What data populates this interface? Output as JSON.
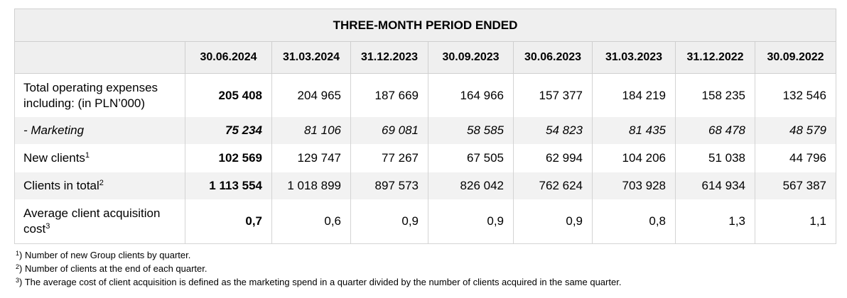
{
  "table": {
    "group_header": "THREE-MONTH PERIOD ENDED",
    "periods": [
      "30.06.2024",
      "31.03.2024",
      "31.12.2023",
      "30.09.2023",
      "30.06.2023",
      "31.03.2023",
      "31.12.2022",
      "30.09.2022"
    ],
    "rows": [
      {
        "label_line1": "Total operating expenses",
        "label_line2": "including: (in PLN’000)",
        "values": [
          "205 408",
          "204 965",
          "187 669",
          "164 966",
          "157 377",
          "184 219",
          "158 235",
          "132 546"
        ]
      },
      {
        "label": "- Marketing",
        "values": [
          "75 234",
          "81 106",
          "69 081",
          "58 585",
          "54 823",
          "81 435",
          "68 478",
          "48 579"
        ]
      },
      {
        "label": "New clients",
        "sup": "1",
        "values": [
          "102 569",
          "129 747",
          "77 267",
          "67 505",
          "62 994",
          "104 206",
          "51 038",
          "44 796"
        ]
      },
      {
        "label": "Clients in total",
        "sup": "2",
        "values": [
          "1 113 554",
          "1 018 899",
          "897 573",
          "826 042",
          "762 624",
          "703 928",
          "614 934",
          "567 387"
        ]
      },
      {
        "label_line1": "Average client acquisition",
        "label_line2": "cost",
        "sup": "3",
        "values": [
          "0,7",
          "0,6",
          "0,9",
          "0,9",
          "0,9",
          "0,8",
          "1,3",
          "1,1"
        ]
      }
    ]
  },
  "footnotes": [
    {
      "mark": "1",
      "text": ") Number of new Group clients by quarter."
    },
    {
      "mark": "2",
      "text": ") Number of clients at the end of each quarter."
    },
    {
      "mark": "3",
      "text": ") The average cost of client acquisition is defined as the marketing spend in a quarter divided by the number of clients acquired in the same quarter."
    }
  ]
}
